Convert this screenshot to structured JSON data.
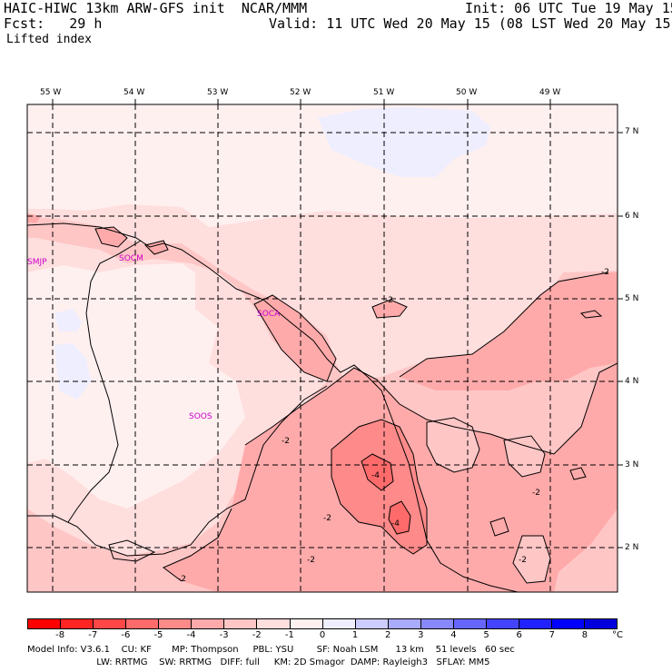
{
  "header": {
    "left1": "HAIC-HIWC 13km ARW-GFS init  NCAR/MMM",
    "right1": "Init: 06 UTC Tue 19 May 15",
    "left2": "Fcst:   29 h",
    "right2": "Valid: 11 UTC Wed 20 May 15 (08 LST Wed 20 May 15)",
    "field": "Lifted index"
  },
  "map": {
    "lon_labels": [
      "55 W",
      "54 W",
      "53 W",
      "52 W",
      "51 W",
      "50 W",
      "49 W"
    ],
    "lat_labels": [
      "7 N",
      "6 N",
      "5 N",
      "4 N",
      "3 N",
      "2 N"
    ],
    "stations": [
      "SMJP",
      "SOCM",
      "SOCA",
      "SOOS"
    ],
    "contour_labels": [
      "-2",
      "-2",
      "-2",
      "-2",
      "-4",
      "-4",
      "-2",
      "-2",
      "-2",
      "-2"
    ]
  },
  "colorbar": {
    "unit": "°C",
    "ticks": [
      "-8",
      "-7",
      "-6",
      "-5",
      "-4",
      "-3",
      "-2",
      "-1",
      "0",
      "1",
      "2",
      "3",
      "4",
      "5",
      "6",
      "7",
      "8"
    ],
    "colors": [
      "#ff0000",
      "#ff2525",
      "#ff4747",
      "#ff6a6a",
      "#ff8a8a",
      "#ffaaaa",
      "#ffc6c6",
      "#ffdede",
      "#fff0f0",
      "#eeeeff",
      "#ccccff",
      "#aaaaff",
      "#8888ff",
      "#6666ff",
      "#4444ff",
      "#2222ff",
      "#0000ff",
      "#0000dd"
    ]
  },
  "footer": {
    "line1": "Model Info: V3.6.1    CU: KF       MP: Thompson     PBL: YSU        SF: Noah LSM      13 km    51 levels   60 sec",
    "line2": "                        LW: RRTMG    SW: RRTMG   DIFF: full     KM: 2D Smagor  DAMP: Rayleigh3   SFLAY: MM5"
  }
}
